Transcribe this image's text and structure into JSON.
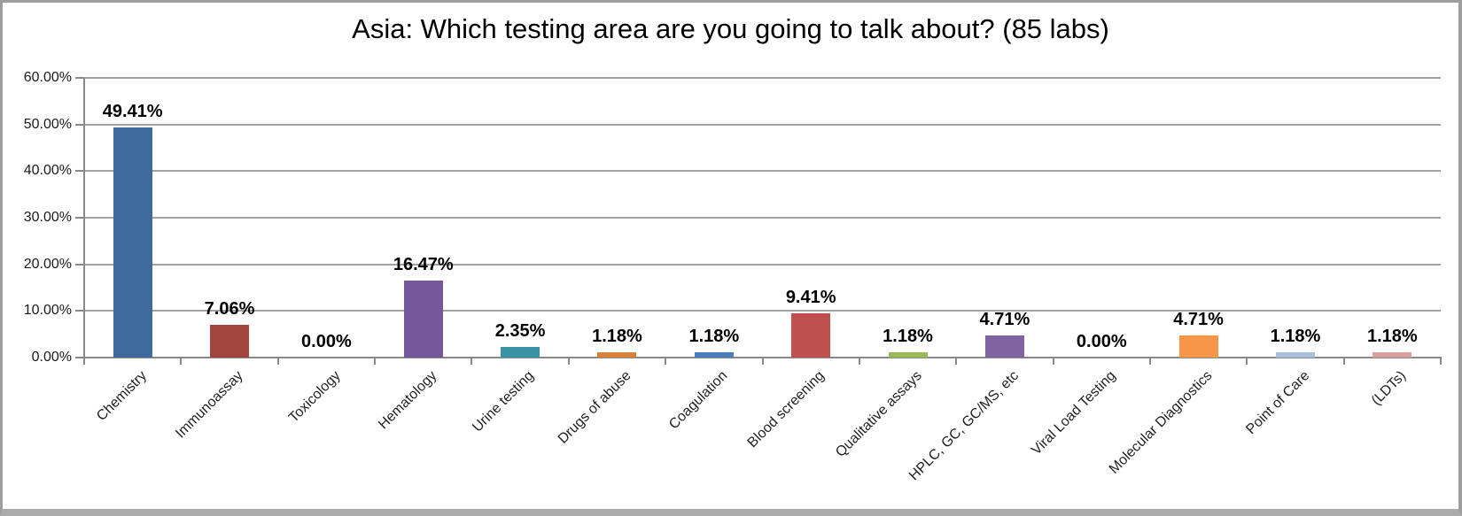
{
  "chart_data": {
    "type": "bar",
    "title": "Asia: Which testing area are you going to talk about? (85 labs)",
    "categories": [
      "Chemistry",
      "Immunoassay",
      "Toxicology",
      "Hematology",
      "Urine testing",
      "Drugs of abuse",
      "Coagulation",
      "Blood screening",
      "Qualitative assays",
      "HPLC, GC, GC/MS, etc",
      "Viral Load Testing",
      "Molecular Diagnostics",
      "Point of Care",
      "(LDTs)"
    ],
    "values": [
      49.41,
      7.06,
      0.0,
      16.47,
      2.35,
      1.18,
      1.18,
      9.41,
      1.18,
      4.71,
      0.0,
      4.71,
      1.18,
      1.18
    ],
    "data_labels": [
      "49.41%",
      "7.06%",
      "0.00%",
      "16.47%",
      "2.35%",
      "1.18%",
      "1.18%",
      "9.41%",
      "1.18%",
      "4.71%",
      "0.00%",
      "4.71%",
      "1.18%",
      "1.18%"
    ],
    "bar_colors": [
      "#3f6a9c",
      "#a2453f",
      null,
      "#75589b",
      "#3a92a5",
      "#d9813a",
      "#4a7ebb",
      "#c0504d",
      "#9aba58",
      "#8064a2",
      null,
      "#f79646",
      "#a8bfde",
      "#d9a0a0"
    ],
    "y_ticks": [
      "60.00%",
      "50.00%",
      "40.00%",
      "30.00%",
      "20.00%",
      "10.00%",
      "0.00%"
    ],
    "ylim": [
      0,
      60
    ],
    "xlabel": "",
    "ylabel": "",
    "grid": true,
    "legend": "none",
    "colors": {
      "gridline": "#a2a2a2",
      "axis": "#898989",
      "text": "#000000",
      "background": "#ffffff"
    }
  }
}
